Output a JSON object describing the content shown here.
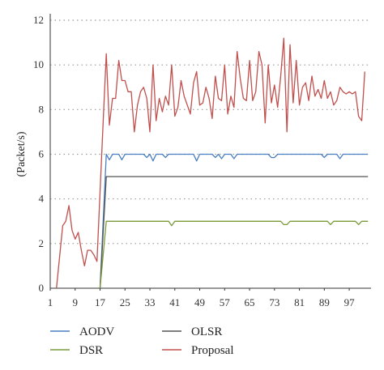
{
  "chart_data": {
    "type": "line",
    "title": "",
    "xlabel": "",
    "ylabel": "(Packet/s)",
    "xlim": [
      1,
      104
    ],
    "ylim": [
      0,
      12
    ],
    "x_ticks": [
      1,
      9,
      17,
      25,
      33,
      41,
      49,
      57,
      65,
      73,
      81,
      89,
      97
    ],
    "y_ticks": [
      0,
      2,
      4,
      6,
      8,
      10,
      12
    ],
    "grid": "horizontal-dotted",
    "legend": "bottom",
    "series": [
      {
        "name": "AODV",
        "color": "#4a7fc1",
        "points": [
          [
            17,
            0
          ],
          [
            19,
            6
          ],
          [
            20,
            5.75
          ],
          [
            21,
            6
          ],
          [
            23,
            6
          ],
          [
            24,
            5.75
          ],
          [
            25,
            6
          ],
          [
            31,
            6
          ],
          [
            32,
            5.85
          ],
          [
            33,
            6
          ],
          [
            34,
            5.7
          ],
          [
            35,
            6
          ],
          [
            37,
            6
          ],
          [
            38,
            5.85
          ],
          [
            39,
            6
          ],
          [
            47,
            6
          ],
          [
            48,
            5.7
          ],
          [
            49,
            6
          ],
          [
            53,
            6
          ],
          [
            54,
            5.85
          ],
          [
            55,
            6
          ],
          [
            56,
            5.8
          ],
          [
            57,
            6
          ],
          [
            59,
            6
          ],
          [
            60,
            5.8
          ],
          [
            61,
            6
          ],
          [
            71,
            6
          ],
          [
            72,
            5.85
          ],
          [
            73,
            5.85
          ],
          [
            74,
            6
          ],
          [
            88,
            6
          ],
          [
            89,
            5.85
          ],
          [
            90,
            6
          ],
          [
            93,
            6
          ],
          [
            94,
            5.8
          ],
          [
            95,
            6
          ],
          [
            103,
            6
          ]
        ]
      },
      {
        "name": "OLSR",
        "color": "#555555",
        "points": [
          [
            17,
            0
          ],
          [
            19,
            5
          ],
          [
            103,
            5
          ]
        ]
      },
      {
        "name": "DSR",
        "color": "#7a9a3a",
        "points": [
          [
            17,
            0
          ],
          [
            19,
            3
          ],
          [
            39,
            3
          ],
          [
            40,
            2.8
          ],
          [
            41,
            3
          ],
          [
            75,
            3
          ],
          [
            76,
            2.85
          ],
          [
            77,
            2.85
          ],
          [
            78,
            3
          ],
          [
            90,
            3
          ],
          [
            91,
            2.85
          ],
          [
            92,
            3
          ],
          [
            99,
            3
          ],
          [
            100,
            2.85
          ],
          [
            101,
            3
          ],
          [
            103,
            3
          ]
        ]
      },
      {
        "name": "Proposal",
        "color": "#c0504d",
        "points": [
          [
            3,
            0
          ],
          [
            5,
            2.8
          ],
          [
            6,
            3
          ],
          [
            7,
            3.7
          ],
          [
            8,
            2.6
          ],
          [
            9,
            2.2
          ],
          [
            10,
            2.5
          ],
          [
            11,
            1.7
          ],
          [
            12,
            1
          ],
          [
            13,
            1.7
          ],
          [
            14,
            1.7
          ],
          [
            15,
            1.5
          ],
          [
            16,
            1.2
          ],
          [
            18,
            7.5
          ],
          [
            19,
            10.5
          ],
          [
            20,
            7.3
          ],
          [
            21,
            8.5
          ],
          [
            22,
            8.5
          ],
          [
            23,
            10.2
          ],
          [
            24,
            9.3
          ],
          [
            25,
            9.3
          ],
          [
            26,
            8.8
          ],
          [
            27,
            8.8
          ],
          [
            28,
            7
          ],
          [
            29,
            8.2
          ],
          [
            30,
            8.8
          ],
          [
            31,
            9
          ],
          [
            32,
            8.5
          ],
          [
            33,
            7
          ],
          [
            34,
            10
          ],
          [
            35,
            7.5
          ],
          [
            36,
            8.5
          ],
          [
            37,
            7.9
          ],
          [
            38,
            8.6
          ],
          [
            39,
            8.2
          ],
          [
            40,
            10
          ],
          [
            41,
            7.7
          ],
          [
            42,
            8.1
          ],
          [
            43,
            9.3
          ],
          [
            44,
            8.6
          ],
          [
            45,
            8.2
          ],
          [
            46,
            7.8
          ],
          [
            47,
            9.2
          ],
          [
            48,
            9.7
          ],
          [
            49,
            8.2
          ],
          [
            50,
            8.3
          ],
          [
            51,
            9
          ],
          [
            52,
            8.5
          ],
          [
            53,
            7.6
          ],
          [
            54,
            9.5
          ],
          [
            55,
            8.5
          ],
          [
            56,
            8.4
          ],
          [
            57,
            10
          ],
          [
            58,
            7.8
          ],
          [
            59,
            8.6
          ],
          [
            60,
            8.1
          ],
          [
            61,
            10.6
          ],
          [
            62,
            9.4
          ],
          [
            63,
            8.5
          ],
          [
            64,
            8.4
          ],
          [
            65,
            10.2
          ],
          [
            66,
            8.4
          ],
          [
            67,
            8.8
          ],
          [
            68,
            10.6
          ],
          [
            69,
            10
          ],
          [
            70,
            7.4
          ],
          [
            71,
            10
          ],
          [
            72,
            8.3
          ],
          [
            73,
            9.1
          ],
          [
            74,
            8.1
          ],
          [
            75,
            9.5
          ],
          [
            76,
            11.2
          ],
          [
            77,
            7
          ],
          [
            78,
            10.9
          ],
          [
            79,
            8.3
          ],
          [
            80,
            10.2
          ],
          [
            81,
            8.2
          ],
          [
            82,
            9
          ],
          [
            83,
            9.2
          ],
          [
            84,
            8.4
          ],
          [
            85,
            9.5
          ],
          [
            86,
            8.6
          ],
          [
            87,
            8.9
          ],
          [
            88,
            8.5
          ],
          [
            89,
            9.3
          ],
          [
            90,
            8.5
          ],
          [
            91,
            8.8
          ],
          [
            92,
            8.2
          ],
          [
            93,
            8.4
          ],
          [
            94,
            9
          ],
          [
            95,
            8.8
          ],
          [
            96,
            8.7
          ],
          [
            97,
            8.8
          ],
          [
            98,
            8.7
          ],
          [
            99,
            8.8
          ],
          [
            100,
            7.7
          ],
          [
            101,
            7.5
          ],
          [
            102,
            9.7
          ]
        ]
      }
    ]
  }
}
